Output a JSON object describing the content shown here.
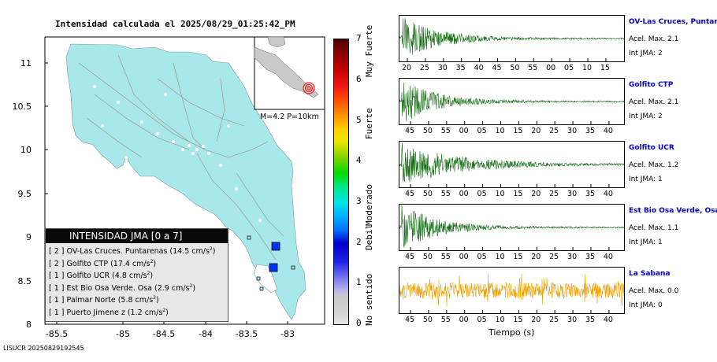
{
  "map": {
    "title": "Intensidad calculada el 2025/08/29_01:25:42_PM",
    "x_ticks": [
      "-85.5",
      "-85",
      "-84.5",
      "-84",
      "-83.5",
      "-83"
    ],
    "y_ticks": [
      "11",
      "10.5",
      "10",
      "9.5",
      "9",
      "8.5",
      "8"
    ],
    "inset_label": "M=4.2 P=10km",
    "colors": {
      "land": "#a8e8ea",
      "sea": "#ffffff",
      "roads": "#a0a0a0",
      "accent_blue": "#0033ff",
      "epicenter": "#ff2020"
    }
  },
  "colorbar": {
    "ticks": [
      "0",
      "1",
      "2",
      "3",
      "4",
      "5",
      "6",
      "7"
    ],
    "labels": [
      "No sentido",
      "Debil",
      "Moderado",
      "Fuerte",
      "Muy Fuerte"
    ]
  },
  "legend": {
    "title": "INTENSIDAD JMA [0 a 7]",
    "rows": [
      {
        "level": "[ 2 ]",
        "text": "OV-Las Cruces. Puntarenas (14.5 cm/s",
        "unit_exp": "2",
        "close": ")"
      },
      {
        "level": "[ 2 ]",
        "text": "Golfito CTP (17.4 cm/s",
        "unit_exp": "2",
        "close": ")"
      },
      {
        "level": "[ 1 ]",
        "text": "Golfito UCR (4.8 cm/s",
        "unit_exp": "2",
        "close": ")"
      },
      {
        "level": "[ 1 ]",
        "text": "Est Bio Osa Verde. Osa (2.9 cm/s",
        "unit_exp": "2",
        "close": ")"
      },
      {
        "level": "[ 1 ]",
        "text": "Palmar Norte (5.8 cm/s",
        "unit_exp": "2",
        "close": ")"
      },
      {
        "level": "[ 1 ]",
        "text": "Puerto Jimene z (1.2 cm/s",
        "unit_exp": "2",
        "close": ")"
      }
    ]
  },
  "traces": [
    {
      "name": "OV-Las Cruces, Puntar",
      "acel": "Acel. Max. 2.1",
      "int": "Int JMA: 2",
      "color": "#1a6e1a",
      "ticks": [
        "20",
        "25",
        "30",
        "35",
        "40",
        "45",
        "50",
        "55",
        "00",
        "05",
        "10",
        "15"
      ]
    },
    {
      "name": "Golfito CTP",
      "acel": "Acel. Max. 2.1",
      "int": "Int JMA: 2",
      "color": "#1a6e1a",
      "ticks": [
        "45",
        "50",
        "55",
        "00",
        "05",
        "10",
        "15",
        "20",
        "25",
        "30",
        "35",
        "40"
      ]
    },
    {
      "name": "Golfito UCR",
      "acel": "Acel. Max. 1.2",
      "int": "Int JMA: 1",
      "color": "#1a6e1a",
      "ticks": [
        "45",
        "50",
        "55",
        "00",
        "05",
        "10",
        "15",
        "20",
        "25",
        "30",
        "35",
        "40"
      ]
    },
    {
      "name": "Est Bio Osa Verde, Osa",
      "acel": "Acel. Max. 1.1",
      "int": "Int JMA: 1",
      "color": "#1a6e1a",
      "ticks": [
        "45",
        "50",
        "55",
        "00",
        "05",
        "10",
        "15",
        "20",
        "25",
        "30",
        "35",
        "40"
      ]
    },
    {
      "name": "La Sabana",
      "acel": "Acel. Max. 0.0",
      "int": "Int JMA: 0",
      "color": "#f0a000",
      "ticks": [
        "45",
        "50",
        "55",
        "00",
        "05",
        "10",
        "15",
        "20",
        "25",
        "30",
        "35",
        "40"
      ]
    }
  ],
  "time_label": "Tiempo (s)",
  "footer_id": "LISUCR 20250829192545"
}
